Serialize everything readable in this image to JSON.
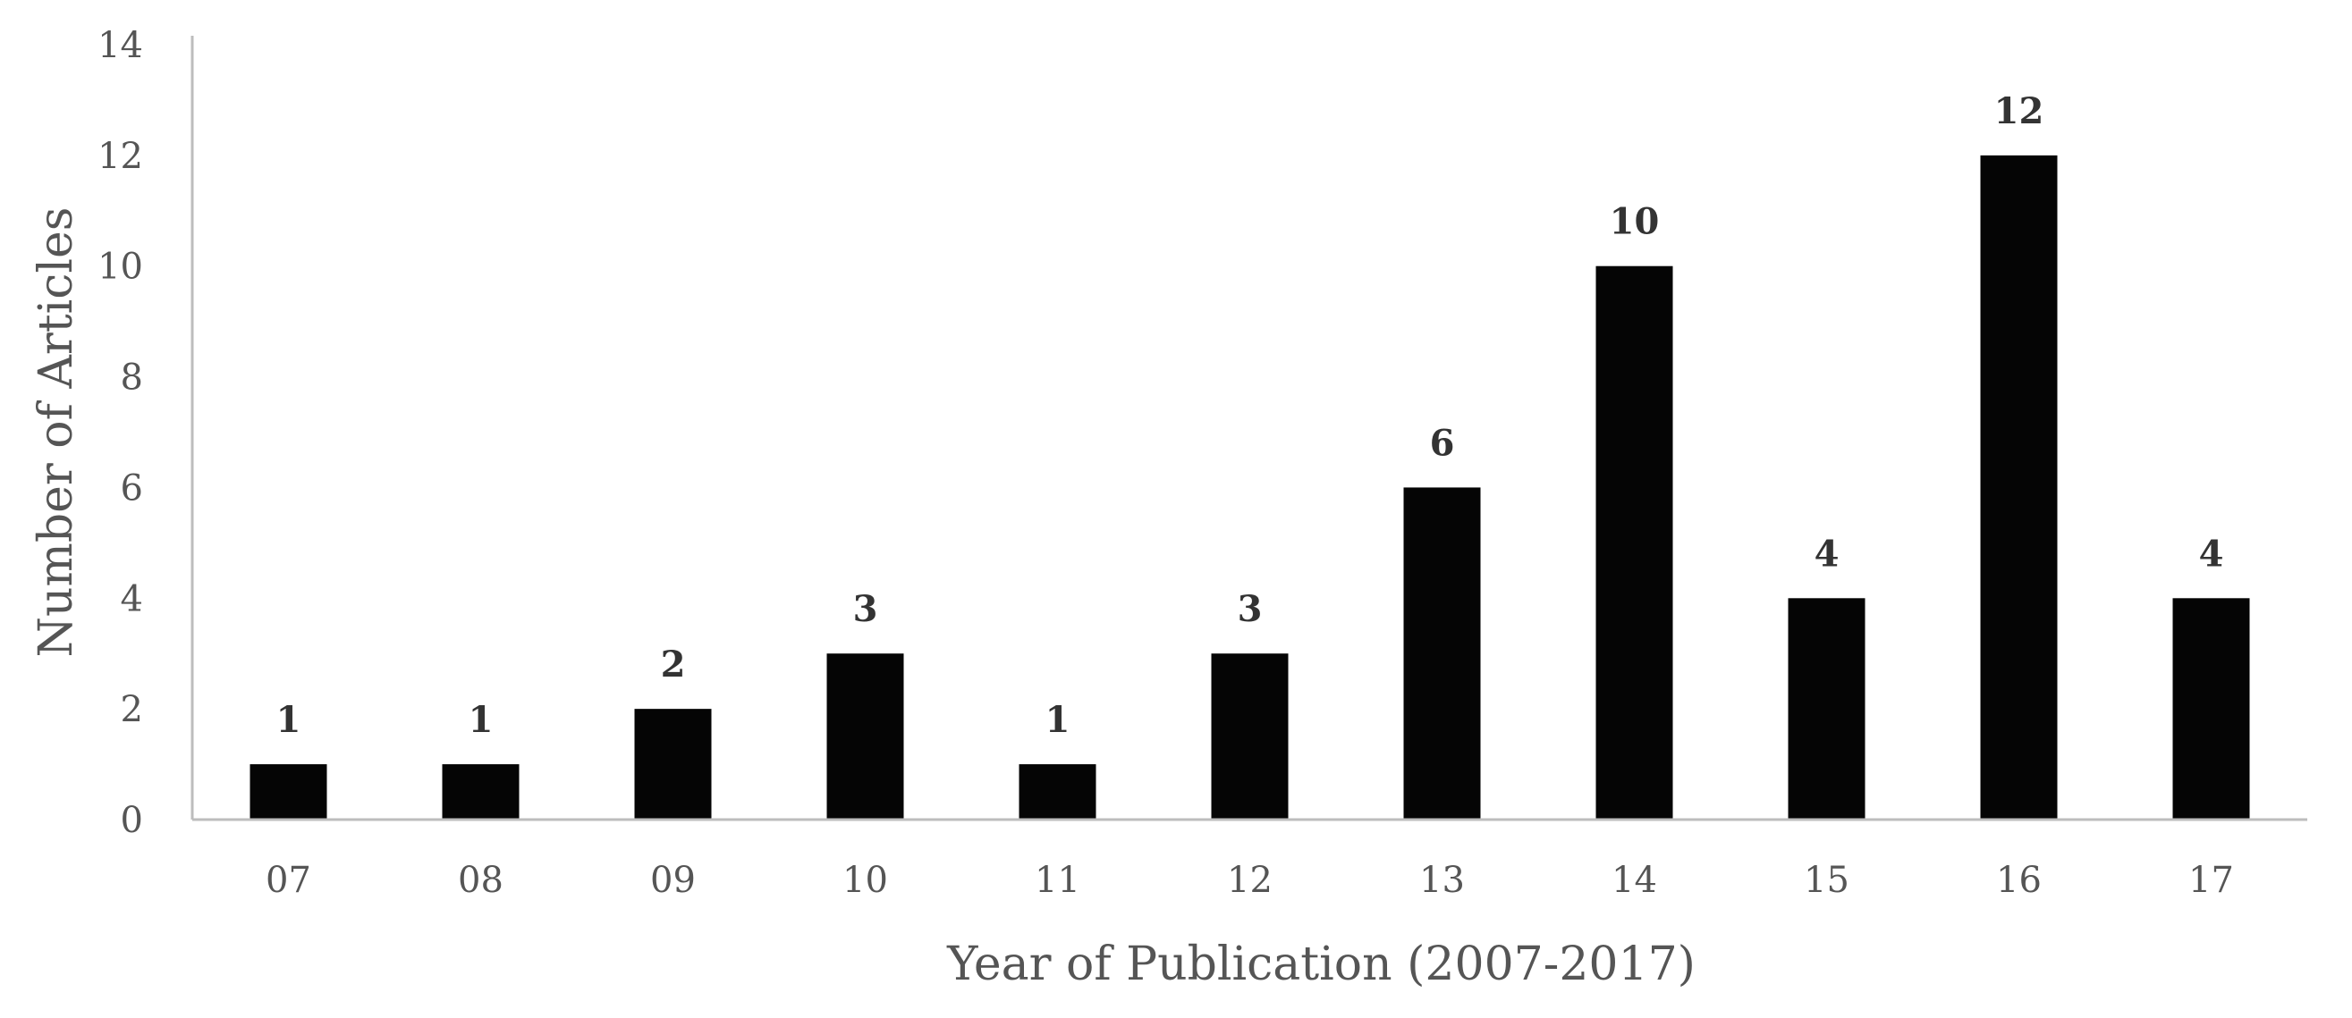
{
  "chart_data": {
    "type": "bar",
    "categories": [
      "07",
      "08",
      "09",
      "10",
      "11",
      "12",
      "13",
      "14",
      "15",
      "16",
      "17"
    ],
    "values": [
      1,
      1,
      2,
      3,
      1,
      3,
      6,
      10,
      4,
      12,
      4
    ],
    "title": "",
    "xlabel": "Year of Publication (2007-2017)",
    "ylabel": "Number of Articles",
    "ylim": [
      0,
      14
    ],
    "yticks": [
      0,
      2,
      4,
      6,
      8,
      10,
      12,
      14
    ],
    "grid": false,
    "legend": "none",
    "bar_color": "#050505",
    "data_labels": true
  }
}
